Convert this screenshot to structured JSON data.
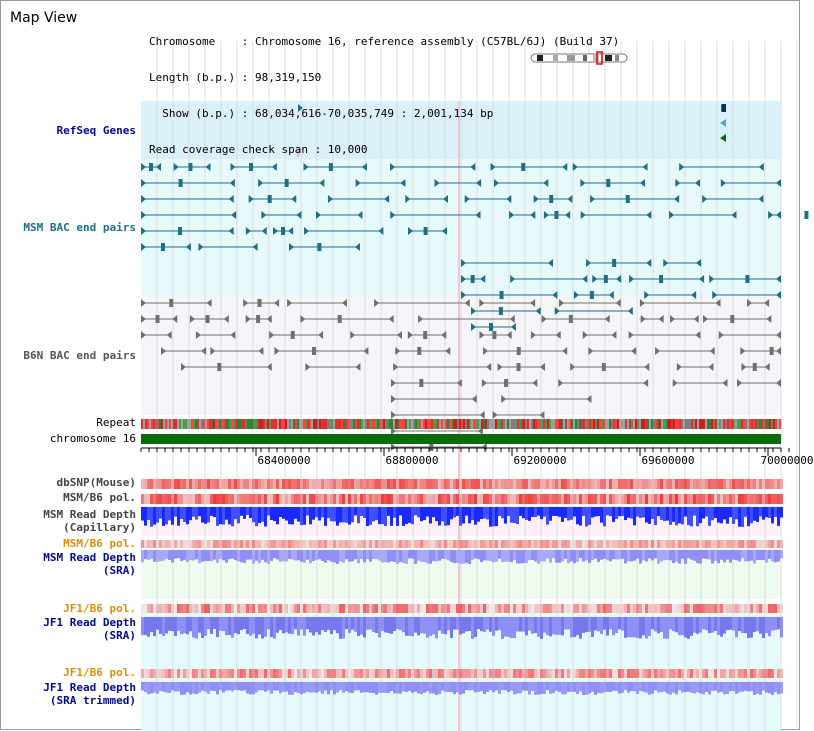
{
  "view_title": "Map View",
  "info": {
    "line1": "Chromosome    : Chromosome 16, reference assembly (C57BL/6J) (Build 37)",
    "line2": "Length (b.p.) : 98,319,150",
    "line3": "  Show (b.p.) : 68,034,616-70,035,749 : 2,001,134 bp",
    "line4": "Read coverage check span : 10,000"
  },
  "colors": {
    "refseq_band": "#daf1fb",
    "msm_band": "#e6f9fb",
    "b6n_band": "#f4f6fa",
    "msm_bac": "#1d6f8a",
    "b6n_bac": "#707070",
    "chromosome": "#0b6b0b",
    "depth_blue": "#1a2aff",
    "depth_light": "#8f8ff5",
    "pol_red": "#f04040",
    "blue_label": "#000a96",
    "orange_label": "#e48c00"
  },
  "tracks": {
    "refseq": "RefSeq Genes",
    "msm_bac": "MSM BAC end pairs",
    "b6n_bac": "B6N BAC end pairs",
    "repeat": "Repeat",
    "chromosome": "chromosome 16",
    "dbsnp": "dbSNP(Mouse)",
    "msm_b6_pol": "MSM/B6 pol.",
    "msm_depth_cap_1": "MSM Read Depth",
    "msm_depth_cap_2": "(Capillary)",
    "msm_b6_pol_sra": "MSM/B6 pol.",
    "msm_depth_sra_1": "MSM Read Depth",
    "msm_depth_sra_2": "(SRA)",
    "jf1_b6_pol": "JF1/B6 pol.",
    "jf1_depth_sra_1": "JF1 Read Depth",
    "jf1_depth_sra_2": "(SRA)",
    "jf1_b6_pol_trim": "JF1/B6 pol.",
    "jf1_depth_trim_1": "JF1 Read Depth",
    "jf1_depth_trim_2": "(SRA trimmed)"
  },
  "axis": {
    "ticks": [
      "68400000",
      "68800000",
      "69200000",
      "69600000",
      "70000000"
    ]
  }
}
